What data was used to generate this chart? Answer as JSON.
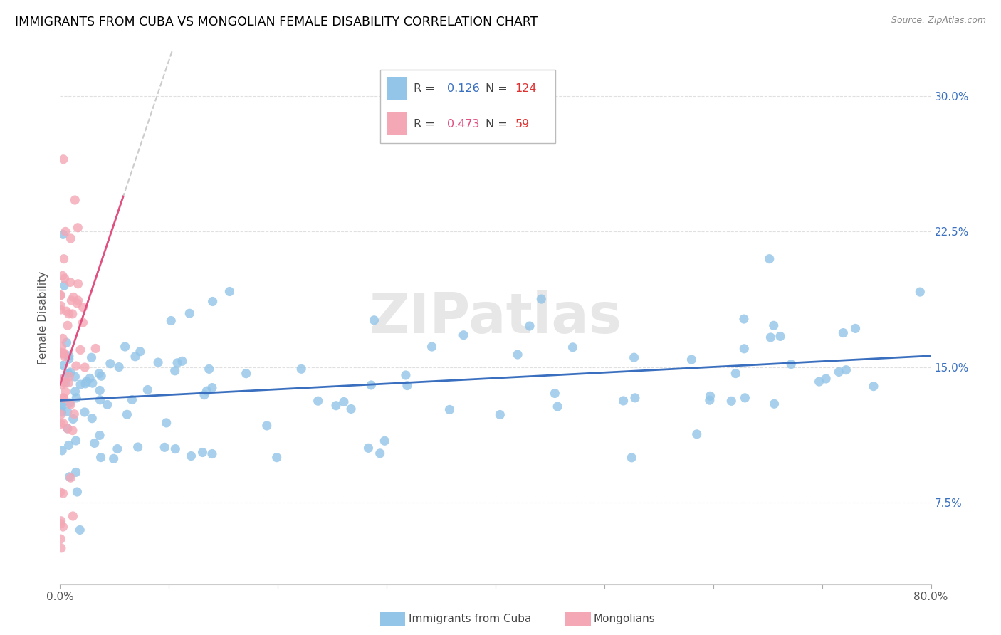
{
  "title": "IMMIGRANTS FROM CUBA VS MONGOLIAN FEMALE DISABILITY CORRELATION CHART",
  "source": "Source: ZipAtlas.com",
  "ylabel": "Female Disability",
  "yticks": [
    0.075,
    0.15,
    0.225,
    0.3
  ],
  "ytick_labels": [
    "7.5%",
    "15.0%",
    "22.5%",
    "30.0%"
  ],
  "xmin": 0.0,
  "xmax": 0.8,
  "ymin": 0.03,
  "ymax": 0.325,
  "cuba_R": 0.126,
  "cuba_N": 124,
  "mongolia_R": 0.473,
  "mongolia_N": 59,
  "cuba_color": "#92C5E8",
  "mongolia_color": "#F4A7B5",
  "cuba_line_color": "#3A6FBF",
  "mongolia_line_color": "#E05080",
  "mongolia_dash_color": "#CCCCCC",
  "watermark": "ZIPatlas",
  "title_fontsize": 12.5,
  "axis_label_fontsize": 11,
  "tick_fontsize": 11,
  "legend_r_color_cuba": "#3A70C0",
  "legend_n_color": "#E03030",
  "legend_r_color_mongolia": "#E05080",
  "right_tick_color": "#3A70C0"
}
